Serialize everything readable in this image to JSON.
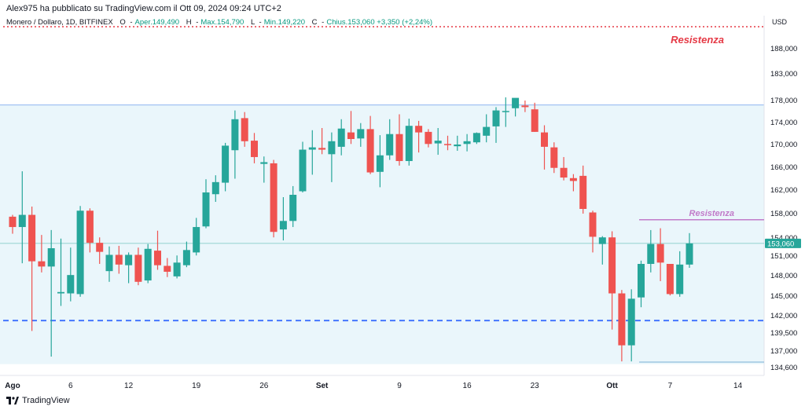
{
  "header": {
    "published": "Alex975 ha pubblicato su TradingView.com il Ott 09, 2024 09:24 UTC+2"
  },
  "legend": {
    "symbol": "Monero / Dollaro, 1D, BITFINEX",
    "open_label": "O",
    "open_text": "Aper.149,490",
    "high_label": "H",
    "high_text": "Max.154,790",
    "low_label": "L",
    "low_text": "Min.149,220",
    "close_label": "C",
    "close_text": "Chius.153,060",
    "change": "+3,350 (+2,24%)"
  },
  "footer": {
    "brand": "TradingView"
  },
  "colors": {
    "up": "#26a69a",
    "down": "#ef5350",
    "zone_fill": "#eaf6fb",
    "resistance_red": "#e53945",
    "resistance_purple": "#c17bc9",
    "support_blue": "#2962ff",
    "last_price": "#26a69a"
  },
  "chart_data": {
    "type": "candlestick",
    "currency": "USD",
    "y_ticks": [
      "188,000",
      "183,000",
      "178,000",
      "174,000",
      "170,000",
      "166,000",
      "162,000",
      "158,000",
      "154,000",
      "151,000",
      "148,000",
      "145,000",
      "142,000",
      "139,500",
      "137,000",
      "134,600"
    ],
    "x_ticks": [
      {
        "label": "Ago",
        "bold": true,
        "idx": 0
      },
      {
        "label": "6",
        "idx": 6
      },
      {
        "label": "12",
        "idx": 12
      },
      {
        "label": "19",
        "idx": 19
      },
      {
        "label": "26",
        "idx": 26
      },
      {
        "label": "Set",
        "bold": true,
        "idx": 32
      },
      {
        "label": "9",
        "idx": 40
      },
      {
        "label": "16",
        "idx": 47
      },
      {
        "label": "23",
        "idx": 54
      },
      {
        "label": "Ott",
        "bold": true,
        "idx": 62
      },
      {
        "label": "7",
        "idx": 68
      },
      {
        "label": "14",
        "idx": 75
      }
    ],
    "last_price": "153,060",
    "annotations": [
      {
        "text": "Resistenza",
        "style": "bold-red"
      },
      {
        "text": "Resistenza",
        "style": "purple"
      }
    ],
    "levels": {
      "top_dotted": 192.5,
      "zone_top": 177.2,
      "resistance_purple": 157.0,
      "support_dashed": 141.3,
      "zone_bottom": 135.1,
      "low_line": 135.4
    },
    "candles": [
      [
        157.5,
        157.8,
        154.7,
        155.8
      ],
      [
        155.8,
        165.3,
        149.9,
        157.8
      ],
      [
        157.8,
        159.2,
        139.8,
        150.2
      ],
      [
        150.2,
        154.5,
        148.5,
        149.4
      ],
      [
        149.4,
        155.3,
        136.2,
        152.3
      ],
      [
        145.4,
        153.9,
        143.5,
        145.6
      ],
      [
        145.4,
        152.4,
        144.2,
        148.1
      ],
      [
        145.3,
        159.3,
        144.9,
        158.5
      ],
      [
        158.5,
        158.9,
        151.6,
        153.2
      ],
      [
        153.2,
        154.1,
        149.8,
        151.7
      ],
      [
        148.7,
        152.6,
        147.1,
        151.2
      ],
      [
        151.2,
        152.7,
        148.3,
        149.7
      ],
      [
        149.6,
        151.6,
        146.9,
        151.2
      ],
      [
        151.2,
        152.4,
        146.6,
        147.1
      ],
      [
        147.3,
        153.0,
        146.9,
        152.2
      ],
      [
        151.9,
        155.2,
        148.9,
        149.6
      ],
      [
        149.5,
        150.7,
        147.8,
        148.6
      ],
      [
        147.9,
        151.1,
        147.6,
        150.0
      ],
      [
        149.6,
        153.4,
        149.3,
        152.0
      ],
      [
        151.6,
        157.3,
        151.1,
        155.8
      ],
      [
        155.9,
        163.9,
        155.6,
        161.6
      ],
      [
        161.3,
        164.6,
        160.0,
        163.4
      ],
      [
        163.3,
        170.3,
        161.8,
        169.8
      ],
      [
        169.0,
        176.2,
        164.0,
        174.6
      ],
      [
        174.8,
        175.9,
        169.6,
        170.6
      ],
      [
        170.7,
        172.1,
        166.7,
        167.8
      ],
      [
        166.6,
        167.9,
        163.3,
        166.9
      ],
      [
        166.7,
        167.3,
        154.1,
        155.0
      ],
      [
        155.4,
        160.8,
        153.6,
        156.8
      ],
      [
        156.8,
        162.7,
        155.8,
        161.2
      ],
      [
        161.8,
        170.5,
        161.6,
        169.1
      ],
      [
        169.1,
        172.6,
        164.7,
        169.5
      ],
      [
        169.4,
        173.0,
        168.3,
        169.1
      ],
      [
        168.3,
        172.2,
        163.4,
        170.6
      ],
      [
        169.6,
        174.6,
        168.1,
        172.9
      ],
      [
        172.2,
        176.1,
        170.1,
        171.0
      ],
      [
        171.1,
        173.9,
        169.6,
        172.8
      ],
      [
        172.8,
        175.2,
        164.8,
        165.1
      ],
      [
        165.2,
        171.7,
        162.5,
        168.1
      ],
      [
        168.1,
        174.6,
        167.3,
        171.9
      ],
      [
        171.9,
        175.5,
        166.3,
        167.1
      ],
      [
        167.1,
        174.7,
        166.3,
        173.4
      ],
      [
        173.4,
        174.3,
        168.6,
        172.2
      ],
      [
        172.3,
        172.8,
        169.5,
        170.1
      ],
      [
        170.2,
        173.0,
        168.2,
        170.7
      ],
      [
        170.1,
        171.6,
        169.0,
        169.9
      ],
      [
        169.7,
        171.6,
        168.9,
        170.0
      ],
      [
        170.1,
        171.9,
        168.8,
        170.6
      ],
      [
        170.4,
        172.2,
        170.1,
        172.1
      ],
      [
        171.6,
        175.5,
        170.4,
        173.2
      ],
      [
        173.3,
        176.8,
        170.3,
        176.2
      ],
      [
        175.9,
        178.6,
        173.2,
        176.1
      ],
      [
        176.6,
        178.2,
        175.1,
        178.5
      ],
      [
        177.1,
        178.0,
        175.9,
        176.8
      ],
      [
        176.4,
        177.6,
        172.3,
        172.3
      ],
      [
        172.2,
        173.5,
        165.6,
        169.6
      ],
      [
        169.5,
        170.4,
        165.0,
        165.9
      ],
      [
        165.9,
        167.8,
        163.7,
        164.2
      ],
      [
        164.1,
        164.8,
        161.8,
        163.6
      ],
      [
        164.5,
        166.3,
        158.0,
        158.8
      ],
      [
        158.2,
        158.5,
        151.6,
        154.2
      ],
      [
        153.0,
        154.3,
        149.7,
        154.1
      ],
      [
        154.1,
        155.1,
        140.0,
        145.4
      ],
      [
        145.4,
        145.9,
        135.5,
        137.8
      ],
      [
        137.8,
        146.0,
        135.5,
        144.6
      ],
      [
        144.8,
        150.3,
        143.3,
        149.8
      ],
      [
        149.8,
        155.3,
        148.5,
        153.0
      ],
      [
        153.0,
        155.6,
        147.2,
        150.0
      ],
      [
        149.8,
        149.6,
        145.1,
        145.3
      ],
      [
        145.3,
        151.8,
        144.9,
        149.7
      ],
      [
        149.7,
        154.8,
        149.2,
        153.1
      ]
    ]
  }
}
